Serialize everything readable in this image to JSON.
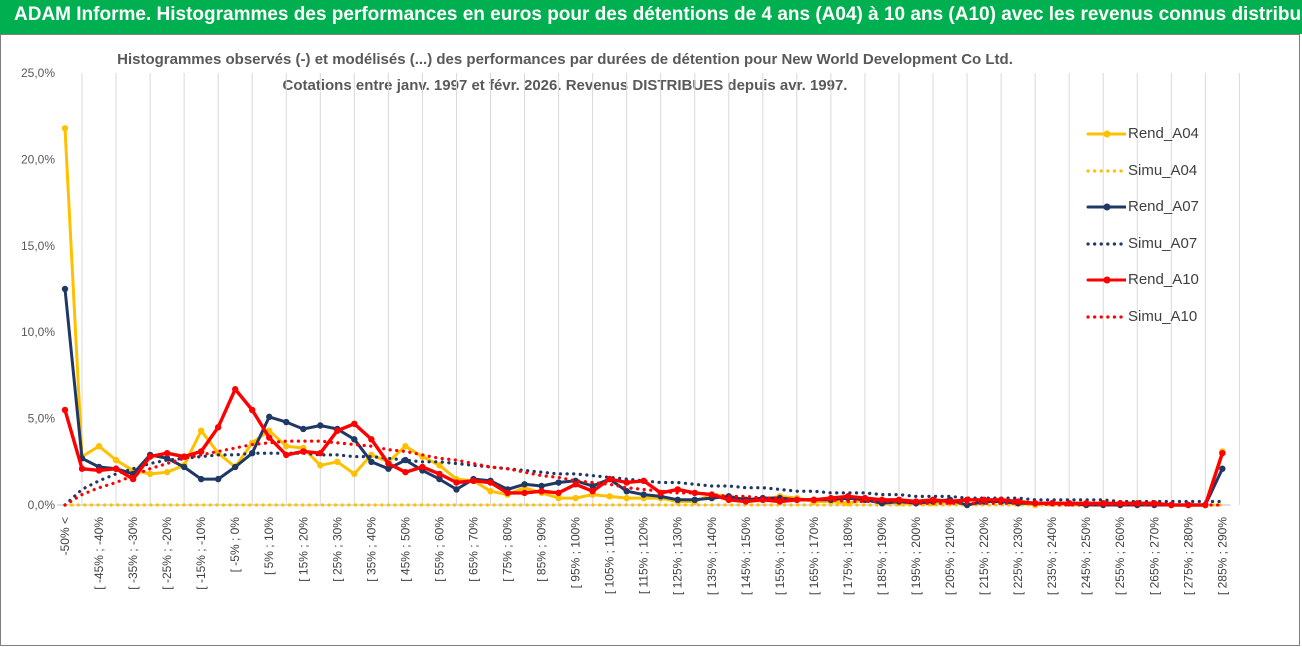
{
  "header": {
    "title": "ADAM Informe. Histogrammes des performances en euros pour des détentions de 4 ans (A04) à 10 ans (A10) avec les revenus connus distribués"
  },
  "colors": {
    "header_bg": "#00b050",
    "A04": "#ffc000",
    "A07": "#1f3864",
    "A10": "#ff0000",
    "grid": "#d9d9d9"
  },
  "chart_data": {
    "type": "line",
    "title": "Histogrammes observés (-) et modélisés (...) des performances par durées de détention pour New World Development Co Ltd.",
    "subtitle": "Cotations entre janv. 1997 et févr. 2026. Revenus DISTRIBUES depuis avr. 1997.",
    "xlabel": "",
    "ylabel": "",
    "ylim": [
      0,
      25
    ],
    "y_ticks": [
      "0,0%",
      "5,0%",
      "10,0%",
      "15,0%",
      "20,0%",
      "25,0%"
    ],
    "grid": "vertical",
    "legend_position": "right",
    "x_tick_labels": [
      "-50% <",
      "[ -45% ; -40%",
      "[ -35% ; -30%",
      "[ -25% ; -20%",
      "[ -15% ; -10%",
      "[ -5% ; 0%",
      "[ 5% ; 10%",
      "[ 15% ; 20%",
      "[ 25% ; 30%",
      "[ 35% ; 40%",
      "[ 45% ; 50%",
      "[ 55% ; 60%",
      "[ 65% ; 70%",
      "[ 75% ; 80%",
      "[ 85% ; 90%",
      "[ 95% ; 100%",
      "[ 105% ; 110%",
      "[ 115% ; 120%",
      "[ 125% ; 130%",
      "[ 135% ; 140%",
      "[ 145% ; 150%",
      "[ 155% ; 160%",
      "[ 165% ; 170%",
      "[ 175% ; 180%",
      "[ 185% ; 190%",
      "[ 195% ; 200%",
      "[ 205% ; 210%",
      "[ 215% ; 220%",
      "[ 225% ; 230%",
      "[ 235% ; 240%",
      "[ 245% ; 250%",
      "[ 255% ; 260%",
      "[ 265% ; 270%",
      "[ 275% ; 280%",
      "[ 285% ; 290%"
    ],
    "x_count": 69,
    "series": [
      {
        "name": "Rend_A04",
        "style": "solid",
        "color": "#ffc000",
        "values": [
          21.8,
          2.8,
          3.4,
          2.6,
          2.0,
          1.8,
          1.9,
          2.3,
          4.3,
          3.0,
          2.2,
          3.6,
          4.3,
          3.4,
          3.3,
          2.3,
          2.5,
          1.8,
          2.9,
          2.5,
          3.4,
          2.8,
          2.3,
          1.5,
          1.4,
          0.8,
          0.6,
          1.0,
          0.7,
          0.4,
          0.4,
          0.6,
          0.5,
          0.4,
          0.4,
          0.4,
          0.2,
          0.2,
          0.6,
          0.5,
          0.3,
          0.3,
          0.5,
          0.4,
          0.2,
          0.2,
          0.1,
          0.3,
          0.2,
          0.1,
          0.1,
          0.1,
          0.2,
          0.0,
          0.2,
          0.2,
          0.1,
          0.0,
          0.1,
          0.1,
          0.1,
          0.1,
          0.0,
          0.0,
          0.1,
          0.0,
          0.0,
          0.0,
          3.1
        ]
      },
      {
        "name": "Simu_A04",
        "style": "dotted",
        "color": "#ffc000",
        "values": [
          0,
          0,
          0,
          0,
          0,
          0,
          0,
          0,
          0,
          0,
          0,
          0,
          0,
          0,
          0,
          0,
          0,
          0,
          0,
          0,
          0,
          0,
          0,
          0,
          0,
          0,
          0,
          0,
          0,
          0,
          0,
          0,
          0,
          0,
          0,
          0,
          0,
          0,
          0,
          0,
          0,
          0,
          0,
          0,
          0,
          0,
          0,
          0,
          0,
          0,
          0,
          0,
          0,
          0,
          0,
          0,
          0,
          0,
          0,
          0,
          0,
          0,
          0,
          0,
          0,
          0,
          0,
          0,
          0
        ]
      },
      {
        "name": "Rend_A07",
        "style": "solid",
        "color": "#1f3864",
        "values": [
          12.5,
          2.7,
          2.2,
          2.1,
          1.8,
          2.9,
          2.7,
          2.2,
          1.5,
          1.5,
          2.2,
          3.0,
          5.1,
          4.8,
          4.4,
          4.6,
          4.4,
          3.8,
          2.5,
          2.1,
          2.6,
          2.0,
          1.5,
          0.9,
          1.5,
          1.4,
          0.9,
          1.2,
          1.1,
          1.3,
          1.4,
          1.1,
          1.5,
          0.8,
          0.6,
          0.5,
          0.3,
          0.3,
          0.4,
          0.5,
          0.3,
          0.4,
          0.4,
          0.3,
          0.3,
          0.3,
          0.4,
          0.3,
          0.1,
          0.2,
          0.1,
          0.2,
          0.3,
          0.0,
          0.2,
          0.2,
          0.1,
          0.1,
          0.1,
          0.1,
          0.0,
          0.0,
          0.0,
          0.0,
          0.0,
          0.0,
          0.0,
          0.0,
          2.1
        ]
      },
      {
        "name": "Simu_A07",
        "style": "dotted",
        "color": "#1f3864",
        "values": [
          0.0,
          0.9,
          1.4,
          1.8,
          2.1,
          2.4,
          2.6,
          2.7,
          2.8,
          2.9,
          2.9,
          3.0,
          3.0,
          3.0,
          3.0,
          2.9,
          2.9,
          2.8,
          2.8,
          2.7,
          2.6,
          2.5,
          2.5,
          2.4,
          2.3,
          2.2,
          2.1,
          2.0,
          1.9,
          1.8,
          1.8,
          1.7,
          1.6,
          1.5,
          1.4,
          1.3,
          1.3,
          1.2,
          1.1,
          1.1,
          1.0,
          1.0,
          0.9,
          0.8,
          0.8,
          0.7,
          0.7,
          0.7,
          0.6,
          0.6,
          0.5,
          0.5,
          0.5,
          0.4,
          0.4,
          0.4,
          0.4,
          0.3,
          0.3,
          0.3,
          0.3,
          0.3,
          0.2,
          0.2,
          0.2,
          0.2,
          0.2,
          0.2,
          0.2
        ]
      },
      {
        "name": "Rend_A10",
        "style": "solid",
        "color": "#ff0000",
        "values": [
          5.5,
          2.1,
          2.0,
          2.1,
          1.5,
          2.8,
          3.0,
          2.8,
          3.1,
          4.5,
          6.7,
          5.5,
          3.9,
          2.9,
          3.1,
          3.0,
          4.3,
          4.7,
          3.8,
          2.4,
          1.9,
          2.2,
          1.8,
          1.3,
          1.4,
          1.3,
          0.7,
          0.7,
          0.8,
          0.7,
          1.2,
          0.8,
          1.5,
          1.3,
          1.4,
          0.7,
          0.9,
          0.7,
          0.6,
          0.3,
          0.2,
          0.3,
          0.2,
          0.3,
          0.3,
          0.4,
          0.5,
          0.4,
          0.3,
          0.3,
          0.2,
          0.3,
          0.2,
          0.3,
          0.3,
          0.3,
          0.2,
          0.1,
          0.1,
          0.1,
          0.1,
          0.1,
          0.1,
          0.1,
          0.1,
          0.0,
          0.0,
          0.0,
          3.0
        ]
      },
      {
        "name": "Simu_A10",
        "style": "dotted",
        "color": "#ff0000",
        "values": [
          0.0,
          0.6,
          1.0,
          1.3,
          1.7,
          2.1,
          2.4,
          2.7,
          2.9,
          3.1,
          3.3,
          3.5,
          3.6,
          3.7,
          3.7,
          3.7,
          3.6,
          3.5,
          3.4,
          3.2,
          3.1,
          2.9,
          2.7,
          2.6,
          2.4,
          2.2,
          2.1,
          1.9,
          1.7,
          1.6,
          1.4,
          1.3,
          1.2,
          1.0,
          0.9,
          0.8,
          0.7,
          0.7,
          0.6,
          0.5,
          0.5,
          0.4,
          0.4,
          0.3,
          0.3,
          0.3,
          0.2,
          0.2,
          0.2,
          0.2,
          0.1,
          0.1,
          0.1,
          0.1,
          0.1,
          0.1,
          0.1,
          0.1,
          0.0,
          0.0,
          0.0,
          0.0,
          0.0,
          0.0,
          0.0,
          0.0,
          0.0,
          0.0,
          0.0
        ]
      }
    ]
  }
}
